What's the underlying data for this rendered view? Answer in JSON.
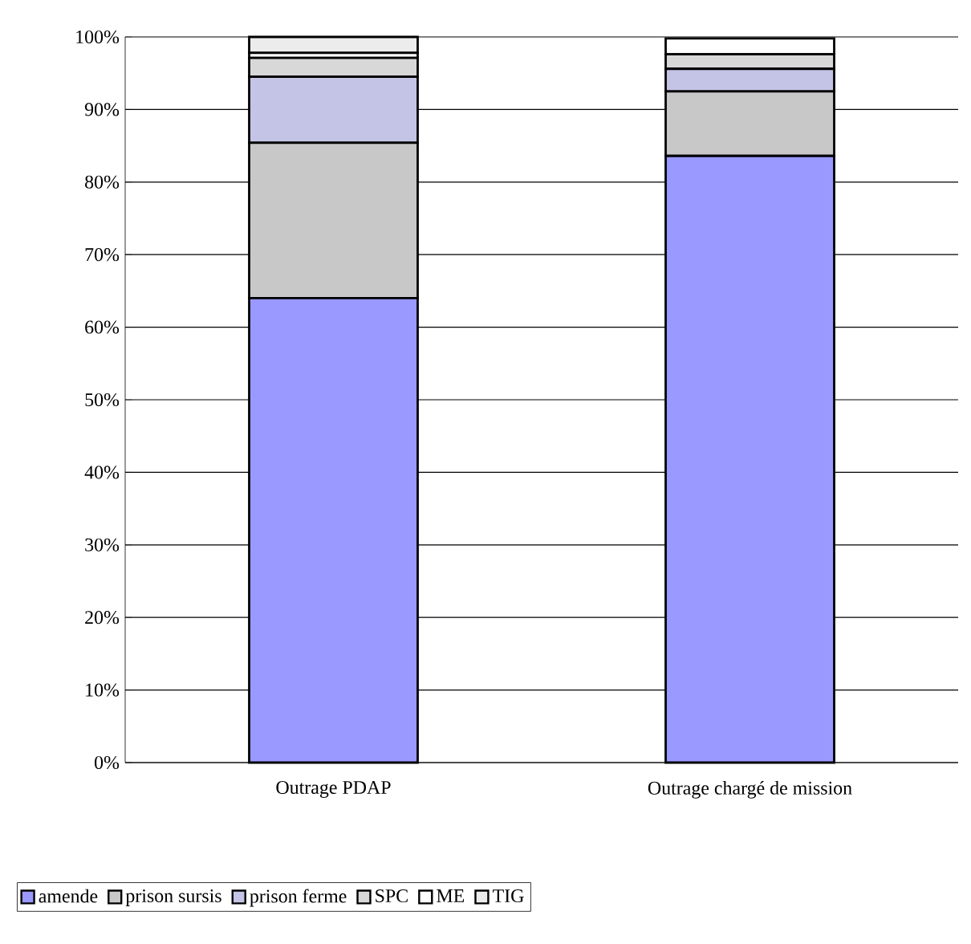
{
  "chart_data": {
    "type": "bar",
    "stacked": true,
    "categories": [
      "Outrage PDAP",
      "Outrage chargé de mission"
    ],
    "series": [
      {
        "name": "amende",
        "color": "#9999ff",
        "values": [
          64,
          83.6
        ]
      },
      {
        "name": "prison sursis",
        "color": "#c8c8c8",
        "values": [
          21.4,
          8.9
        ]
      },
      {
        "name": "prison ferme",
        "color": "#c4c4e6",
        "values": [
          9.1,
          3.1
        ]
      },
      {
        "name": "SPC",
        "color": "#d8d8d8",
        "values": [
          2.6,
          2.0
        ]
      },
      {
        "name": "ME",
        "color": "#ffffff",
        "values": [
          0.7,
          2.2
        ]
      },
      {
        "name": "TIG",
        "color": "#ececec",
        "values": [
          2.2,
          null
        ]
      }
    ],
    "ylim": [
      0,
      100
    ],
    "yticks": [
      {
        "value": 0,
        "label": "0%"
      },
      {
        "value": 10,
        "label": "10%"
      },
      {
        "value": 20,
        "label": "20%"
      },
      {
        "value": 30,
        "label": "30%"
      },
      {
        "value": 40,
        "label": "40%"
      },
      {
        "value": 50,
        "label": "50%"
      },
      {
        "value": 60,
        "label": "60%"
      },
      {
        "value": 70,
        "label": "70%"
      },
      {
        "value": 80,
        "label": "80%"
      },
      {
        "value": 90,
        "label": "90%"
      },
      {
        "value": 100,
        "label": "100%"
      }
    ],
    "grid": "y",
    "legend": "bottom"
  }
}
